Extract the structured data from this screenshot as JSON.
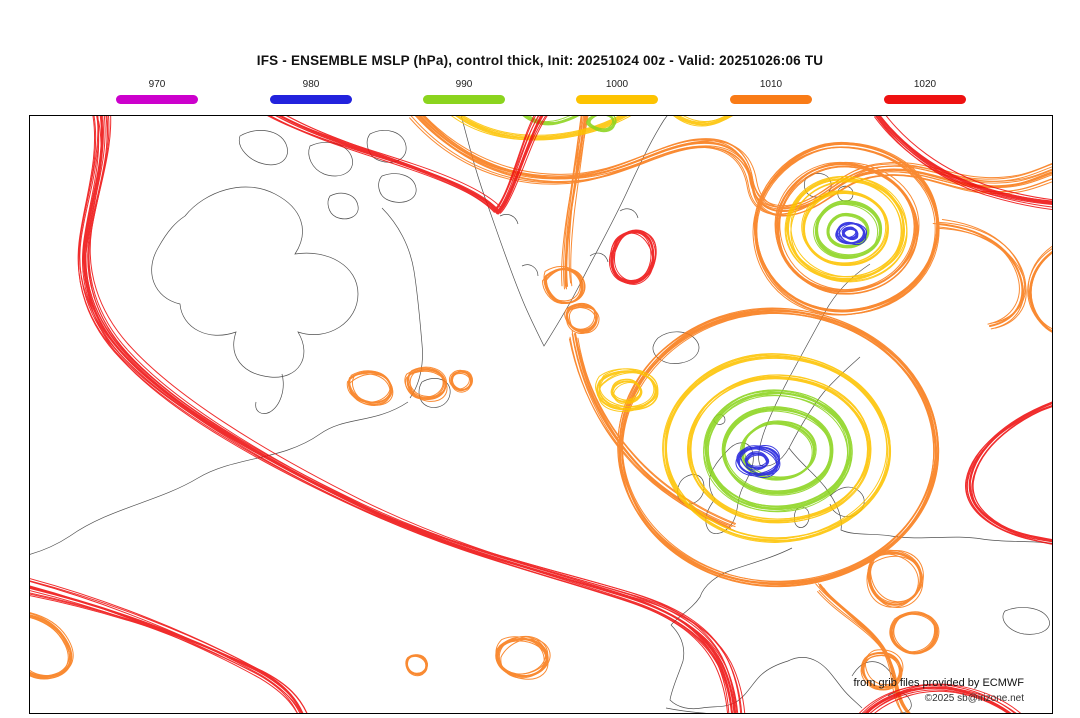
{
  "title": "IFS - ENSEMBLE MSLP (hPa), control thick, Init: 20251024 00z - Valid: 20251026:06 TU",
  "legend": {
    "items": [
      {
        "label": "970",
        "color": "#cc00cc"
      },
      {
        "label": "980",
        "color": "#2222dd"
      },
      {
        "label": "990",
        "color": "#8bd41e"
      },
      {
        "label": "1000",
        "color": "#fdc300"
      },
      {
        "label": "1010",
        "color": "#f97b17"
      },
      {
        "label": "1020",
        "color": "#ee1111"
      }
    ]
  },
  "map": {
    "coast_color": "#3d3d3d",
    "frame_color": "#000000",
    "credit_line1": "from grib files provided by ECMWF",
    "credit_line2": "©2025 sb@irizone.net"
  },
  "chart_data": {
    "type": "contour-ensemble-map",
    "model": "IFS ENSEMBLE",
    "variable": "MSLP",
    "units": "hPa",
    "init": "20251024 00z",
    "valid": "20251026:06 TU",
    "control_member": "thick line",
    "contour_levels_hpa": [
      970,
      980,
      990,
      1000,
      1010,
      1020
    ],
    "level_colors": {
      "970": "#cc00cc",
      "980": "#2222dd",
      "990": "#8bd41e",
      "1000": "#fdc300",
      "1010": "#f97b17",
      "1020": "#ee1111"
    },
    "region": "North Atlantic and Europe",
    "visible_features": [
      {
        "feature": "closed low",
        "approx_location": "Barents Sea / north of Scandinavia",
        "innermost_contour_hpa": 980
      },
      {
        "feature": "closed low",
        "approx_location": "southern Norway / North Sea",
        "innermost_contour_hpa": 980
      },
      {
        "feature": "broad 1020 hPa spaghetti band",
        "approx_location": "central North Atlantic sweeping from NW Atlantic to Biscay"
      },
      {
        "feature": "1010 hPa band",
        "approx_location": "across Arctic top of domain and encircling both lows"
      }
    ]
  }
}
